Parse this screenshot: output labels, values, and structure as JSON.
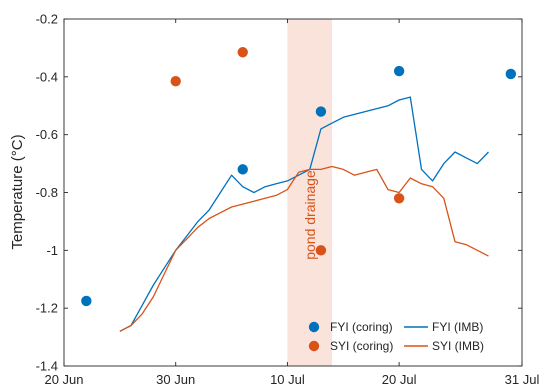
{
  "chart_data": {
    "type": "line",
    "title": "",
    "xlabel": "",
    "ylabel": "Temperature (°C)",
    "xlim": [
      "2020-06-20",
      "2020-07-31"
    ],
    "ylim": [
      -1.4,
      -0.2
    ],
    "x_ticks": [
      "20 Jun",
      "30 Jun",
      "10 Jul",
      "20 Jul",
      "31 Jul"
    ],
    "y_ticks": [
      -1.4,
      -1.2,
      -1,
      -0.8,
      -0.6,
      -0.4,
      -0.2
    ],
    "grid": false,
    "legend": "bottom-right",
    "shaded_region": {
      "x": [
        "2020-07-10",
        "2020-07-14"
      ],
      "label": "pond drainage",
      "color": "#F9E3DB"
    },
    "colors": {
      "FYI": "#0072BD",
      "SYI": "#D95319",
      "axis": "#262626"
    },
    "legend_entries": [
      {
        "label": "FYI (coring)",
        "marker": "circle",
        "color": "#0072BD"
      },
      {
        "label": "SYI (coring)",
        "marker": "circle",
        "color": "#D95319"
      },
      {
        "label": "FYI (IMB)",
        "marker": "line",
        "color": "#0072BD"
      },
      {
        "label": "SYI (IMB)",
        "marker": "line",
        "color": "#D95319"
      }
    ],
    "series": [
      {
        "name": "FYI (coring)",
        "kind": "scatter",
        "color": "#0072BD",
        "points": [
          {
            "x": "2020-06-22",
            "y": -1.175
          },
          {
            "x": "2020-07-06",
            "y": -0.72
          },
          {
            "x": "2020-07-13",
            "y": -0.52
          },
          {
            "x": "2020-07-20",
            "y": -0.38
          },
          {
            "x": "2020-07-30",
            "y": -0.39
          }
        ]
      },
      {
        "name": "SYI (coring)",
        "kind": "scatter",
        "color": "#D95319",
        "points": [
          {
            "x": "2020-06-30",
            "y": -0.415
          },
          {
            "x": "2020-07-06",
            "y": -0.315
          },
          {
            "x": "2020-07-13",
            "y": -1.0
          },
          {
            "x": "2020-07-20",
            "y": -0.82
          }
        ]
      },
      {
        "name": "FYI (IMB)",
        "kind": "line",
        "color": "#0072BD",
        "points": [
          {
            "x": "2020-06-25",
            "y": -1.28
          },
          {
            "x": "2020-06-26",
            "y": -1.26
          },
          {
            "x": "2020-06-27",
            "y": -1.19
          },
          {
            "x": "2020-06-28",
            "y": -1.12
          },
          {
            "x": "2020-06-29",
            "y": -1.06
          },
          {
            "x": "2020-06-30",
            "y": -1.0
          },
          {
            "x": "2020-07-01",
            "y": -0.95
          },
          {
            "x": "2020-07-02",
            "y": -0.9
          },
          {
            "x": "2020-07-03",
            "y": -0.86
          },
          {
            "x": "2020-07-04",
            "y": -0.8
          },
          {
            "x": "2020-07-05",
            "y": -0.74
          },
          {
            "x": "2020-07-06",
            "y": -0.78
          },
          {
            "x": "2020-07-07",
            "y": -0.8
          },
          {
            "x": "2020-07-08",
            "y": -0.78
          },
          {
            "x": "2020-07-09",
            "y": -0.77
          },
          {
            "x": "2020-07-10",
            "y": -0.76
          },
          {
            "x": "2020-07-11",
            "y": -0.74
          },
          {
            "x": "2020-07-12",
            "y": -0.72
          },
          {
            "x": "2020-07-13",
            "y": -0.58
          },
          {
            "x": "2020-07-14",
            "y": -0.56
          },
          {
            "x": "2020-07-15",
            "y": -0.54
          },
          {
            "x": "2020-07-16",
            "y": -0.53
          },
          {
            "x": "2020-07-17",
            "y": -0.52
          },
          {
            "x": "2020-07-18",
            "y": -0.51
          },
          {
            "x": "2020-07-19",
            "y": -0.5
          },
          {
            "x": "2020-07-20",
            "y": -0.48
          },
          {
            "x": "2020-07-21",
            "y": -0.47
          },
          {
            "x": "2020-07-22",
            "y": -0.72
          },
          {
            "x": "2020-07-23",
            "y": -0.76
          },
          {
            "x": "2020-07-24",
            "y": -0.7
          },
          {
            "x": "2020-07-25",
            "y": -0.66
          },
          {
            "x": "2020-07-26",
            "y": -0.68
          },
          {
            "x": "2020-07-27",
            "y": -0.7
          },
          {
            "x": "2020-07-28",
            "y": -0.66
          }
        ]
      },
      {
        "name": "SYI (IMB)",
        "kind": "line",
        "color": "#D95319",
        "points": [
          {
            "x": "2020-06-25",
            "y": -1.28
          },
          {
            "x": "2020-06-26",
            "y": -1.26
          },
          {
            "x": "2020-06-27",
            "y": -1.22
          },
          {
            "x": "2020-06-28",
            "y": -1.16
          },
          {
            "x": "2020-06-29",
            "y": -1.08
          },
          {
            "x": "2020-06-30",
            "y": -1.0
          },
          {
            "x": "2020-07-01",
            "y": -0.96
          },
          {
            "x": "2020-07-02",
            "y": -0.92
          },
          {
            "x": "2020-07-03",
            "y": -0.89
          },
          {
            "x": "2020-07-04",
            "y": -0.87
          },
          {
            "x": "2020-07-05",
            "y": -0.85
          },
          {
            "x": "2020-07-06",
            "y": -0.84
          },
          {
            "x": "2020-07-07",
            "y": -0.83
          },
          {
            "x": "2020-07-08",
            "y": -0.82
          },
          {
            "x": "2020-07-09",
            "y": -0.81
          },
          {
            "x": "2020-07-10",
            "y": -0.79
          },
          {
            "x": "2020-07-11",
            "y": -0.73
          },
          {
            "x": "2020-07-12",
            "y": -0.72
          },
          {
            "x": "2020-07-13",
            "y": -0.72
          },
          {
            "x": "2020-07-14",
            "y": -0.71
          },
          {
            "x": "2020-07-15",
            "y": -0.72
          },
          {
            "x": "2020-07-16",
            "y": -0.74
          },
          {
            "x": "2020-07-17",
            "y": -0.73
          },
          {
            "x": "2020-07-18",
            "y": -0.72
          },
          {
            "x": "2020-07-19",
            "y": -0.79
          },
          {
            "x": "2020-07-20",
            "y": -0.8
          },
          {
            "x": "2020-07-21",
            "y": -0.75
          },
          {
            "x": "2020-07-22",
            "y": -0.77
          },
          {
            "x": "2020-07-23",
            "y": -0.78
          },
          {
            "x": "2020-07-24",
            "y": -0.82
          },
          {
            "x": "2020-07-25",
            "y": -0.97
          },
          {
            "x": "2020-07-26",
            "y": -0.98
          },
          {
            "x": "2020-07-27",
            "y": -1.0
          },
          {
            "x": "2020-07-28",
            "y": -1.02
          }
        ]
      }
    ]
  }
}
